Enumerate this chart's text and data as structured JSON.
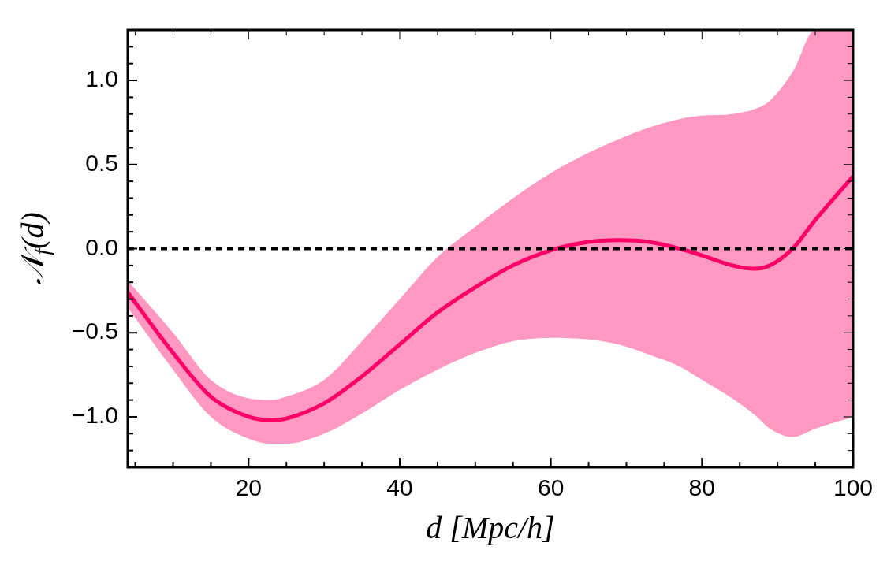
{
  "chart_data": {
    "type": "line",
    "xlabel": "d [Mpc/h]",
    "ylabel": "𝒩$_{f}$(d)",
    "x": [
      4,
      10,
      15,
      20,
      23,
      25,
      30,
      35,
      40,
      45,
      50,
      55,
      60,
      65,
      69,
      73,
      77,
      80,
      84,
      87,
      89,
      92,
      95,
      100
    ],
    "series": [
      {
        "color": "#ff0066",
        "values": [
          -0.26,
          -0.62,
          -0.88,
          -1.0,
          -1.02,
          -1.01,
          -0.92,
          -0.76,
          -0.57,
          -0.38,
          -0.23,
          -0.1,
          -0.01,
          0.04,
          0.05,
          0.04,
          0.0,
          -0.04,
          -0.1,
          -0.12,
          -0.1,
          0.0,
          0.17,
          0.43
        ],
        "lower": [
          -0.35,
          -0.72,
          -1.0,
          -1.13,
          -1.16,
          -1.16,
          -1.1,
          -0.98,
          -0.84,
          -0.72,
          -0.62,
          -0.55,
          -0.53,
          -0.54,
          -0.57,
          -0.63,
          -0.7,
          -0.78,
          -0.89,
          -0.99,
          -1.07,
          -1.12,
          -1.07,
          -1.0
        ],
        "upper": [
          -0.19,
          -0.5,
          -0.78,
          -0.89,
          -0.9,
          -0.88,
          -0.78,
          -0.55,
          -0.3,
          -0.05,
          0.13,
          0.3,
          0.45,
          0.57,
          0.65,
          0.72,
          0.77,
          0.79,
          0.8,
          0.83,
          0.88,
          1.05,
          1.3,
          1.3
        ]
      }
    ],
    "xlim": [
      4,
      100
    ],
    "ylim": [
      -1.3,
      1.3
    ],
    "xticks": [
      {
        "value": 5,
        "label": null
      },
      {
        "value": 10,
        "label": null
      },
      {
        "value": 15,
        "label": null
      },
      20,
      {
        "value": 25,
        "label": null
      },
      {
        "value": 30,
        "label": null
      },
      {
        "value": 35,
        "label": null
      },
      40,
      {
        "value": 45,
        "label": null
      },
      {
        "value": 50,
        "label": null
      },
      {
        "value": 55,
        "label": null
      },
      60,
      {
        "value": 65,
        "label": null
      },
      {
        "value": 70,
        "label": null
      },
      {
        "value": 75,
        "label": null
      },
      80,
      {
        "value": 85,
        "label": null
      },
      {
        "value": 90,
        "label": null
      },
      {
        "value": 95,
        "label": null
      },
      100
    ],
    "yticks": [
      {
        "value": -1.2,
        "label": null
      },
      {
        "value": -1.1,
        "label": null
      },
      {
        "value": -1.0,
        "label": "−1.0"
      },
      {
        "value": -0.9,
        "label": null
      },
      {
        "value": -0.8,
        "label": null
      },
      {
        "value": -0.7,
        "label": null
      },
      {
        "value": -0.6,
        "label": null
      },
      {
        "value": -0.5,
        "label": "−0.5"
      },
      {
        "value": -0.4,
        "label": null
      },
      {
        "value": -0.3,
        "label": null
      },
      {
        "value": -0.2,
        "label": null
      },
      {
        "value": -0.1,
        "label": null
      },
      {
        "value": 0,
        "label": "0.0"
      },
      {
        "value": 0.1,
        "label": null
      },
      {
        "value": 0.2,
        "label": null
      },
      {
        "value": 0.3,
        "label": null
      },
      {
        "value": 0.4,
        "label": null
      },
      0.5,
      {
        "value": 0.6,
        "label": null
      },
      {
        "value": 0.7,
        "label": null
      },
      {
        "value": 0.8,
        "label": null
      },
      {
        "value": 0.9,
        "label": null
      },
      {
        "value": 1.0,
        "label": "1.0"
      },
      {
        "value": 1.1,
        "label": null
      },
      {
        "value": 1.2,
        "label": null
      }
    ],
    "ref_lines": [
      {
        "axis": "y",
        "value": 0,
        "color": "#000000",
        "line_style": "dashed"
      }
    ],
    "legend": false,
    "marker": "none",
    "line_style": "solid"
  }
}
